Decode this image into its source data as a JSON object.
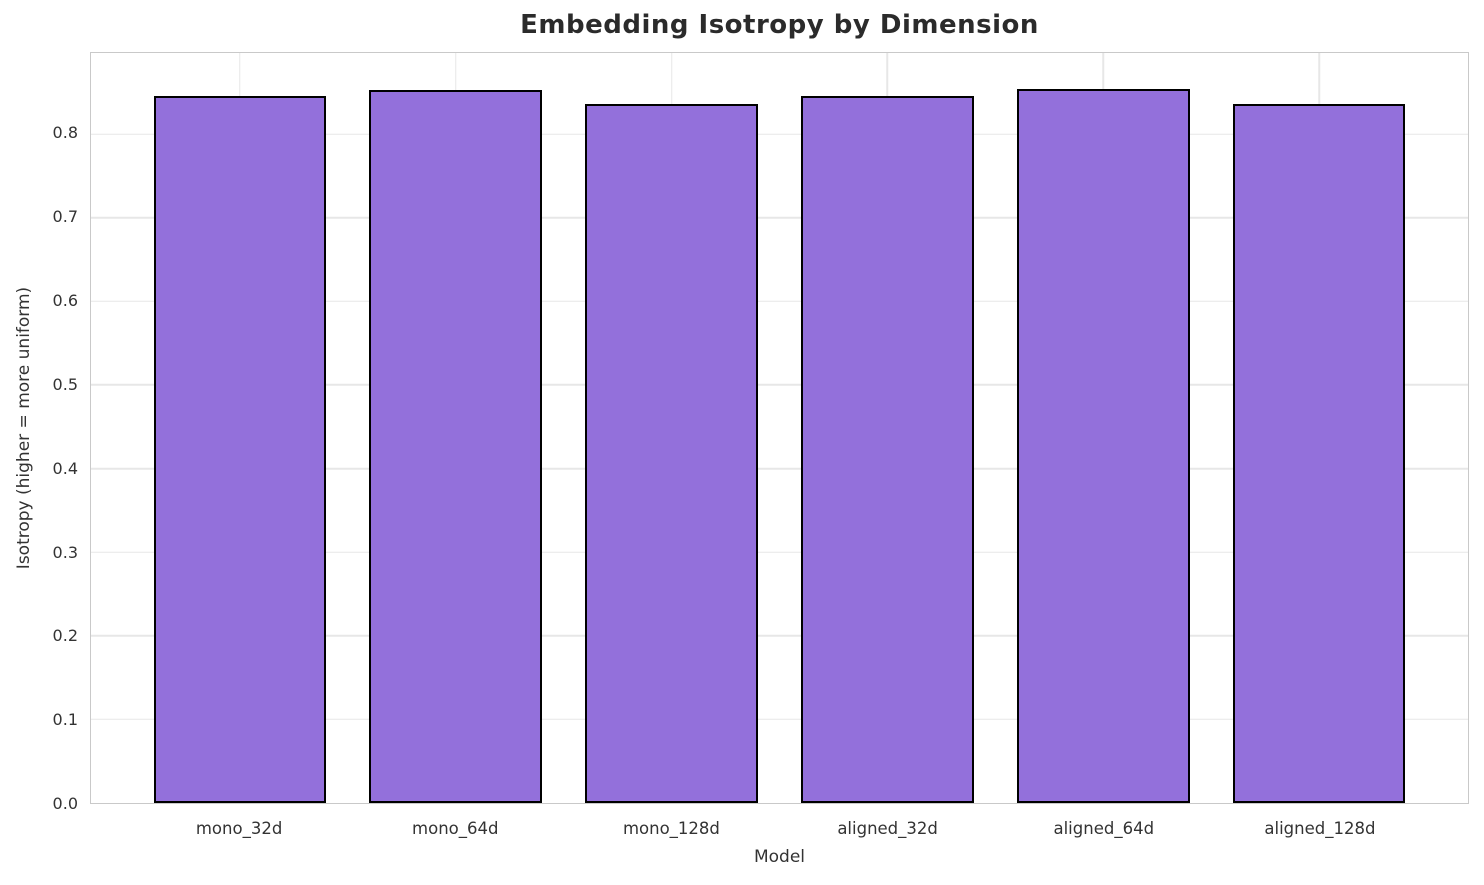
{
  "chart_data": {
    "type": "bar",
    "title": "Embedding Isotropy by Dimension",
    "xlabel": "Model",
    "ylabel": "Isotropy (higher = more uniform)",
    "categories": [
      "mono_32d",
      "mono_64d",
      "mono_128d",
      "aligned_32d",
      "aligned_64d",
      "aligned_128d"
    ],
    "values": [
      0.845,
      0.853,
      0.836,
      0.846,
      0.854,
      0.836
    ],
    "yticks": [
      0.0,
      0.1,
      0.2,
      0.3,
      0.4,
      0.5,
      0.6,
      0.7,
      0.8
    ],
    "ylim": [
      0,
      0.897
    ],
    "grid": true,
    "legend": false,
    "bar_width_fraction": 0.8,
    "colors": {
      "bar_fill": "#9370DB",
      "bar_edge": "#000000",
      "grid": "#e7e7e7",
      "spine": "#c9c9c9",
      "text": "#333333",
      "title": "#2b2b2b",
      "background": "#ffffff"
    }
  }
}
